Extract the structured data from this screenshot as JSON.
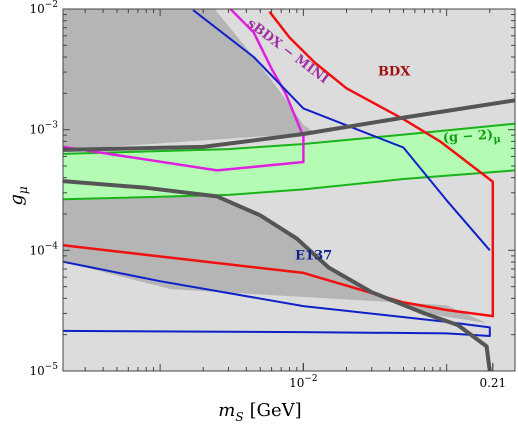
{
  "chart_data": {
    "type": "line",
    "xlabel": "m_S [GeV]",
    "ylabel": "g_μ",
    "xscale": "log",
    "yscale": "log",
    "xlim": [
      0.00021,
      0.3
    ],
    "ylim": [
      1e-05,
      0.01
    ],
    "x_tick_labels": [
      {
        "value": 0.01,
        "label": "10^-2"
      },
      {
        "value": 0.21,
        "label": "0.21"
      }
    ],
    "y_tick_labels": [
      {
        "value": 1e-05,
        "label": "10^-5"
      },
      {
        "value": 0.0001,
        "label": "10^-4"
      },
      {
        "value": 0.001,
        "label": "10^-3"
      },
      {
        "value": 0.01,
        "label": "10^-2"
      }
    ],
    "regions": [
      {
        "name": "excluded-light",
        "color": "#dcdcdc",
        "points": [
          [
            0.00021,
            1e-05
          ],
          [
            0.3,
            1e-05
          ],
          [
            0.3,
            0.01
          ],
          [
            0.00021,
            0.01
          ]
        ]
      },
      {
        "name": "excluded-dark",
        "color": "#b5b5b5",
        "points": [
          [
            0.00021,
            0.01
          ],
          [
            0.0024,
            0.01
          ],
          [
            0.0041,
            0.0046
          ],
          [
            0.0068,
            0.0021
          ],
          [
            0.01,
            0.0011
          ],
          [
            0.012,
            0.00094
          ],
          [
            0.00021,
            0.00068
          ]
        ]
      },
      {
        "name": "e137-dark",
        "color": "#b5b5b5",
        "points": [
          [
            0.00021,
            0.000375
          ],
          [
            0.0008,
            0.00033
          ],
          [
            0.0025,
            0.00028
          ],
          [
            0.005,
            0.000195
          ],
          [
            0.009,
            0.000125
          ],
          [
            0.015,
            7.2e-05
          ],
          [
            0.03,
            4.5e-05
          ],
          [
            0.07,
            3e-05
          ],
          [
            0.19,
            2.5e-05
          ],
          [
            0.1,
            3.5e-05
          ],
          [
            0.0012,
            4.75e-05
          ],
          [
            0.00021,
            8.05e-05
          ]
        ]
      }
    ],
    "bands": [
      {
        "name": "(g − 2)_μ",
        "color": "#b4fcb4",
        "edge_color": "#18b418",
        "upper": [
          [
            0.00021,
            0.00063
          ],
          [
            0.003,
            0.00069
          ],
          [
            0.01,
            0.00076
          ],
          [
            0.05,
            0.00091
          ],
          [
            0.3,
            0.00112
          ]
        ],
        "lower": [
          [
            0.00021,
            0.000265
          ],
          [
            0.003,
            0.000288
          ],
          [
            0.01,
            0.00032
          ],
          [
            0.05,
            0.00039
          ],
          [
            0.3,
            0.00046
          ]
        ]
      }
    ],
    "curves": [
      {
        "name": "BDX",
        "color": "#f01010",
        "width": 2.5,
        "points": [
          [
            0.0058,
            0.0095
          ],
          [
            0.008,
            0.0058
          ],
          [
            0.012,
            0.0036
          ],
          [
            0.02,
            0.0022
          ],
          [
            0.05,
            0.00122
          ],
          [
            0.09,
            0.0008
          ],
          [
            0.21,
            0.00037
          ],
          [
            0.21,
            2.85e-05
          ],
          [
            0.1,
            3.2e-05
          ],
          [
            0.05,
            3.7e-05
          ],
          [
            0.01,
            6.5e-05
          ],
          [
            0.00021,
            0.00011
          ]
        ]
      },
      {
        "name": "sBDX − MINI",
        "color": "#e020e0",
        "width": 2.5,
        "points": [
          [
            0.0029,
            0.0108
          ],
          [
            0.0045,
            0.0064
          ],
          [
            0.006,
            0.0032
          ],
          [
            0.0075,
            0.002
          ],
          [
            0.01,
            0.00088
          ],
          [
            0.01,
            0.00054
          ],
          [
            0.0025,
            0.00046
          ],
          [
            0.00021,
            0.00072
          ]
        ]
      },
      {
        "name": "E137-upper",
        "color": "#1020c8",
        "width": 2,
        "points": [
          [
            0.0017,
            0.0098
          ],
          [
            0.0045,
            0.004
          ],
          [
            0.01,
            0.0015
          ],
          [
            0.05,
            0.00071
          ],
          [
            0.1,
            0.00026
          ],
          [
            0.2,
            0.0001
          ]
        ]
      },
      {
        "name": "E137-lower",
        "color": "#1020c8",
        "width": 2,
        "points": [
          [
            0.00021,
            8.05e-05
          ],
          [
            0.001,
            5.55e-05
          ],
          [
            0.01,
            3.45e-05
          ],
          [
            0.1,
            2.55e-05
          ],
          [
            0.2,
            2.3e-05
          ],
          [
            0.2,
            1.95e-05
          ],
          [
            0.1,
            2.05e-05
          ],
          [
            0.01,
            2.1e-05
          ],
          [
            0.00021,
            2.15e-05
          ]
        ]
      },
      {
        "name": "thick-upper",
        "color": "#555555",
        "width": 4,
        "points": [
          [
            0.00021,
            0.00068
          ],
          [
            0.002,
            0.00072
          ],
          [
            0.01,
            0.00092
          ],
          [
            0.05,
            0.00126
          ],
          [
            0.3,
            0.00175
          ]
        ]
      },
      {
        "name": "thick-lower",
        "color": "#555555",
        "width": 4,
        "points": [
          [
            0.00021,
            0.000375
          ],
          [
            0.0008,
            0.00033
          ],
          [
            0.0025,
            0.00028
          ],
          [
            0.005,
            0.000195
          ],
          [
            0.009,
            0.000125
          ],
          [
            0.015,
            7.2e-05
          ],
          [
            0.03,
            4.5e-05
          ],
          [
            0.07,
            3e-05
          ],
          [
            0.12,
            2.4e-05
          ],
          [
            0.19,
            1.6e-05
          ],
          [
            0.2,
            1e-05
          ]
        ]
      }
    ],
    "annotations": [
      {
        "text": "BDX",
        "x": 0.043,
        "y": 0.0028,
        "color": "#a01010",
        "rotate": 0
      },
      {
        "text": "sBDX − MINI",
        "x": 0.0075,
        "y": 0.0042,
        "color": "#a030a0",
        "rotate": 37
      },
      {
        "text": "(g − 2)_μ",
        "x": 0.15,
        "y": 0.00082,
        "color": "#10a010",
        "rotate": -4
      },
      {
        "text": "E137",
        "x": 0.0118,
        "y": 8.4e-05,
        "color": "#102090",
        "rotate": 0
      }
    ]
  }
}
